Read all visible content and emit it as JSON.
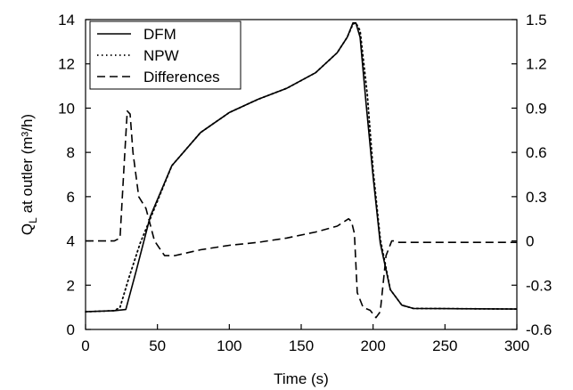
{
  "chart_data": {
    "type": "line",
    "xlabel": "Time (s)",
    "ylabel": "Q_L at outler (m³/h)",
    "xlim": [
      0,
      300
    ],
    "ylim_left": [
      0,
      14
    ],
    "ylim_right": [
      -0.6,
      1.5
    ],
    "x_ticks": [
      "0",
      "50",
      "100",
      "150",
      "200",
      "250",
      "300"
    ],
    "y_left_ticks": [
      "0",
      "2",
      "4",
      "6",
      "8",
      "10",
      "12",
      "14"
    ],
    "y_right_ticks": [
      "-0.6",
      "-0.3",
      "0",
      "0.3",
      "0.6",
      "0.9",
      "1.2",
      "1.5"
    ],
    "grid": false,
    "legend_position": "top-left",
    "series": [
      {
        "name": "DFM",
        "axis": "left",
        "style": "solid",
        "x": [
          0,
          20,
          28,
          35,
          45,
          60,
          80,
          100,
          120,
          140,
          160,
          175,
          182,
          186,
          188,
          191,
          195,
          200,
          205,
          212,
          220,
          228,
          250,
          300
        ],
        "y": [
          0.8,
          0.85,
          0.9,
          2.6,
          5.1,
          7.4,
          8.9,
          9.8,
          10.4,
          10.9,
          11.6,
          12.5,
          13.2,
          13.85,
          13.85,
          13.2,
          10.3,
          6.9,
          3.9,
          1.8,
          1.1,
          0.95,
          0.94,
          0.92
        ]
      },
      {
        "name": "NPW",
        "axis": "left",
        "style": "dotted",
        "x": [
          0,
          20,
          24,
          30,
          38,
          45,
          60,
          80,
          100,
          120,
          140,
          160,
          175,
          182,
          186,
          188,
          191,
          196,
          200,
          205,
          212,
          220,
          228,
          250,
          300
        ],
        "y": [
          0.8,
          0.85,
          1.0,
          2.3,
          3.9,
          5.0,
          7.4,
          8.9,
          9.8,
          10.4,
          10.9,
          11.6,
          12.5,
          13.2,
          13.8,
          13.85,
          13.5,
          10.6,
          7.2,
          4.1,
          1.8,
          1.1,
          0.95,
          0.94,
          0.92
        ]
      },
      {
        "name": "Differences",
        "axis": "right",
        "style": "dashed",
        "x": [
          0,
          20,
          24,
          27,
          29,
          31,
          33,
          37,
          42,
          48,
          55,
          62,
          80,
          100,
          120,
          140,
          160,
          175,
          183,
          185,
          187,
          189,
          193,
          198,
          202,
          205,
          209,
          213,
          215,
          218,
          230,
          300
        ],
        "y": [
          0,
          0,
          0.02,
          0.55,
          0.88,
          0.86,
          0.6,
          0.3,
          0.22,
          0.0,
          -0.1,
          -0.1,
          -0.06,
          -0.03,
          -0.01,
          0.02,
          0.06,
          0.1,
          0.15,
          0.13,
          0.05,
          -0.35,
          -0.45,
          -0.47,
          -0.52,
          -0.48,
          -0.1,
          0.0,
          0.0,
          -0.01,
          -0.01,
          -0.01
        ]
      }
    ]
  }
}
